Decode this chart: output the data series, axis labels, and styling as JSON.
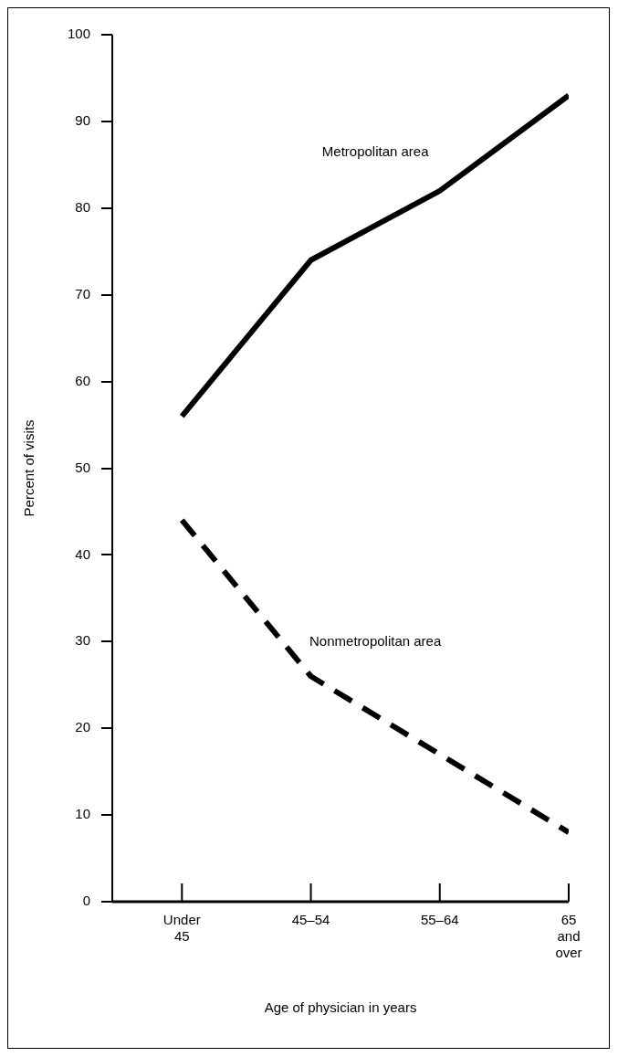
{
  "chart_data": {
    "type": "line",
    "xlabel": "Age of physician in years",
    "ylabel": "Percent of visits",
    "categories": [
      "Under\n45",
      "45–54",
      "55–64",
      "65\nand\nover"
    ],
    "series": [
      {
        "name": "Metropolitan area",
        "color": "#000000",
        "values": [
          56,
          74,
          82,
          93
        ],
        "line_style": "solid"
      },
      {
        "name": "Nonmetropolitan area",
        "color": "#000000",
        "values": [
          44,
          26,
          17,
          8
        ],
        "line_style": "dashed"
      }
    ],
    "ylim": [
      0,
      100
    ],
    "yticks": [
      0,
      10,
      20,
      30,
      40,
      50,
      60,
      70,
      80,
      90,
      100
    ],
    "grid": false,
    "legend": false,
    "marker": "none"
  }
}
